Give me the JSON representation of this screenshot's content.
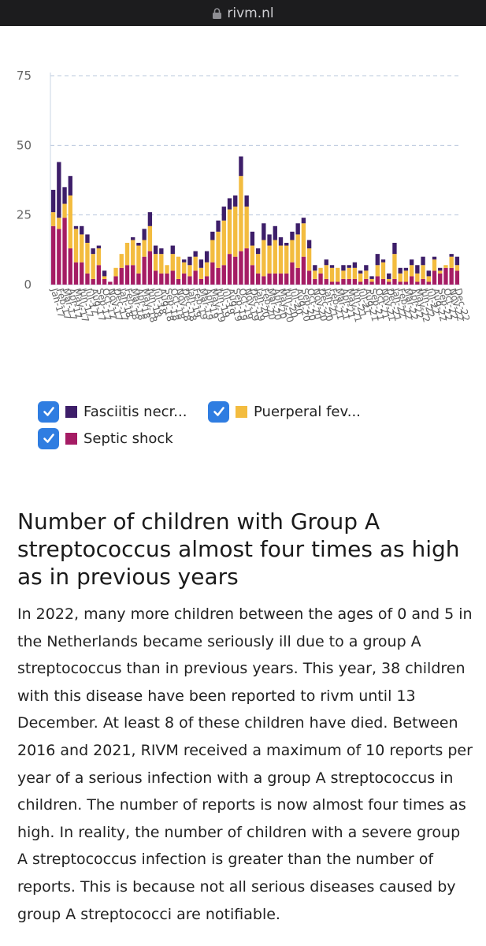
{
  "browser": {
    "domain": "rivm.nl"
  },
  "chart_data": {
    "type": "bar",
    "stacked": true,
    "ylim": [
      0,
      75
    ],
    "yticks": [
      0,
      25,
      50,
      75
    ],
    "grid": "horizontal-dashed",
    "xlabel": "",
    "ylabel": "",
    "categories": [
      "Jan-17",
      "Feb-17",
      "Mar-17",
      "Apr-17",
      "May-17",
      "Jun-17",
      "Jul-17",
      "Aug-17",
      "Sep-17",
      "Oct-17",
      "Nov-17",
      "Dec-17",
      "Jan-18",
      "Feb-18",
      "Mar-18",
      "Apr-18",
      "May-18",
      "Jun-18",
      "Jul-18",
      "Aug-18",
      "Sep-18",
      "Oct-18",
      "Nov-18",
      "Dec-18",
      "Jan-19",
      "Feb-19",
      "Mar-19",
      "Apr-19",
      "May-19",
      "Jun-19",
      "Jul-19",
      "Aug-19",
      "Sep-19",
      "Oct-19",
      "Nov-19",
      "Dec-19",
      "Jan-20",
      "Feb-20",
      "Mar-20",
      "Apr-20",
      "May-20",
      "Jun-20",
      "Jul-20",
      "Aug-20",
      "Sep-20",
      "Oct-20",
      "Nov-20",
      "Dec-20",
      "Jan-21",
      "Feb-21",
      "Mar-21",
      "Apr-21",
      "May-21",
      "Jun-21",
      "Jul-21",
      "Aug-21",
      "Sep-21",
      "Oct-21",
      "Nov-21",
      "Dec-21",
      "Jan-22",
      "Feb-22",
      "Mar-22",
      "Apr-22",
      "May-22",
      "Jun-22",
      "Jul-22",
      "Aug-22",
      "Sep-22",
      "Oct-22",
      "Nov-22",
      "Dec-22"
    ],
    "series": [
      {
        "name": "Septic shock",
        "color": "#a51c64",
        "values": [
          21,
          20,
          24,
          13,
          8,
          8,
          4,
          2,
          7,
          2,
          1,
          3,
          6,
          7,
          7,
          4,
          10,
          12,
          5,
          4,
          4,
          5,
          2,
          4,
          3,
          5,
          2,
          3,
          8,
          6,
          7,
          11,
          10,
          12,
          13,
          7,
          4,
          3,
          4,
          4,
          4,
          4,
          8,
          6,
          10,
          5,
          2,
          4,
          2,
          1,
          1,
          2,
          2,
          2,
          1,
          2,
          1,
          3,
          2,
          1,
          2,
          1,
          1,
          3,
          1,
          2,
          1,
          5,
          4,
          6,
          6,
          5
        ]
      },
      {
        "name": "Puerperal fev...",
        "color": "#f3bc3f",
        "values": [
          5,
          4,
          5,
          19,
          12,
          10,
          11,
          9,
          6,
          1,
          0,
          3,
          5,
          8,
          9,
          10,
          6,
          9,
          6,
          7,
          3,
          6,
          8,
          4,
          4,
          5,
          4,
          5,
          8,
          13,
          16,
          16,
          18,
          27,
          15,
          7,
          7,
          13,
          10,
          12,
          10,
          10,
          8,
          12,
          12,
          8,
          3,
          2,
          5,
          5,
          5,
          3,
          4,
          4,
          3,
          3,
          1,
          4,
          6,
          1,
          9,
          3,
          4,
          4,
          3,
          5,
          2,
          4,
          1,
          1,
          4,
          2
        ]
      },
      {
        "name": "Fasciitis necr...",
        "color": "#3d1e69",
        "values": [
          8,
          20,
          6,
          7,
          1,
          3,
          3,
          2,
          1,
          2,
          0,
          0,
          0,
          0,
          1,
          1,
          4,
          5,
          3,
          2,
          0,
          3,
          0,
          1,
          3,
          2,
          3,
          4,
          3,
          4,
          5,
          4,
          4,
          7,
          4,
          5,
          2,
          6,
          4,
          5,
          3,
          1,
          3,
          4,
          2,
          3,
          2,
          0,
          2,
          1,
          0,
          2,
          1,
          2,
          1,
          2,
          1,
          4,
          1,
          2,
          4,
          2,
          1,
          2,
          3,
          3,
          2,
          1,
          1,
          0,
          1,
          3
        ]
      }
    ]
  },
  "legend": {
    "items": [
      {
        "label": "Fasciitis necr...",
        "color": "#3d1e69",
        "checked": true
      },
      {
        "label": "Puerperal fev...",
        "color": "#f3bc3f",
        "checked": true
      },
      {
        "label": "Septic shock",
        "color": "#a51c64",
        "checked": true
      }
    ]
  },
  "article": {
    "title": "Number of children with Group A streptococcus almost four times as high as in previous years",
    "body": "In 2022, many more children between the ages of 0 and 5 in the Netherlands became seriously ill due to a group A streptococcus than in previous years. This year, 38 children with this disease have been reported to rivm until 13 December. At least 8 of these children have died. Between 2016 and 2021, RIVM received a maximum of 10 reports per year of a serious infection with a group A streptococcus in children. The number of reports is now almost four times as high. In reality, the number of children with a severe group A streptococcus infection is greater than the number of reports. This is because not all serious diseases caused by group A streptococci are notifiable."
  }
}
